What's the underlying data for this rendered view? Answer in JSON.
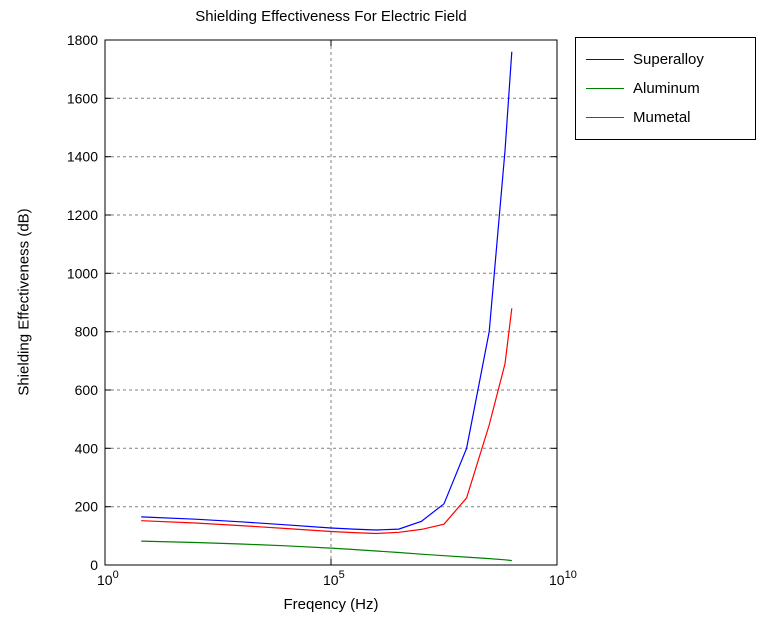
{
  "figure": {
    "background_color": "#ffffff",
    "axes_color": "#000000",
    "text_color": "#000000"
  },
  "chart_data": {
    "type": "line",
    "title": "Shielding Effectiveness For Electric Field",
    "xlabel": "Freqency (Hz)",
    "ylabel": "Shielding Effectiveness (dB)",
    "x_scale": "log",
    "xlim_log10": [
      0,
      10
    ],
    "ylim": [
      0,
      1800
    ],
    "x_ticks": [
      {
        "log10": 0,
        "base": "10",
        "exponent": "0"
      },
      {
        "log10": 5,
        "base": "10",
        "exponent": "5"
      },
      {
        "log10": 10,
        "base": "10",
        "exponent": "10"
      }
    ],
    "y_ticks": [
      0,
      200,
      400,
      600,
      800,
      1000,
      1200,
      1400,
      1600,
      1800
    ],
    "grid": {
      "shown": true,
      "line_style": "dashed",
      "color": "#828282",
      "y_gridlines": [
        200,
        400,
        600,
        800,
        1000,
        1200,
        1400,
        1600
      ],
      "x_gridlines_log10": [
        5
      ]
    },
    "x_log10": [
      0.8,
      2,
      3,
      4,
      5,
      5.5,
      6,
      6.5,
      7,
      7.5,
      8,
      8.5,
      8.85,
      9
    ],
    "series": [
      {
        "name": "Superalloy",
        "color": "#0000ff",
        "values": [
          165,
          157,
          148,
          138,
          127,
          123,
          120,
          123,
          150,
          210,
          400,
          800,
          1420,
          1760
        ]
      },
      {
        "name": "Aluminum",
        "color": "#008000",
        "values": [
          82,
          77,
          72,
          66,
          58,
          53,
          48,
          43,
          37,
          32,
          27,
          22,
          18,
          15
        ]
      },
      {
        "name": "Mumetal",
        "color": "#ff0000",
        "values": [
          152,
          144,
          135,
          125,
          115,
          111,
          108,
          112,
          122,
          140,
          230,
          480,
          690,
          880
        ]
      }
    ],
    "legend": {
      "entries": [
        "Superalloy",
        "Aluminum",
        "Mumetal"
      ],
      "position": "outside-top-right",
      "border_color": "#000000",
      "background": "#ffffff"
    }
  }
}
